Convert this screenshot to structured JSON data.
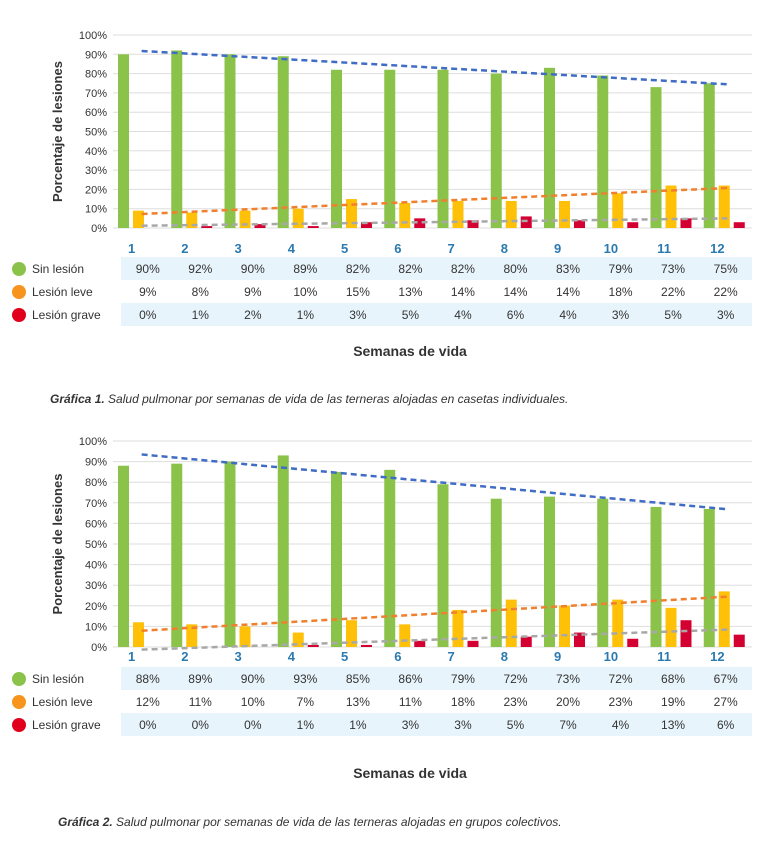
{
  "colors": {
    "sin": "#8bc34a",
    "leve": "#ffc107",
    "grave": "#d50032",
    "trend_sin": "#3f6cc4",
    "trend_leve": "#f07f2e",
    "trend_grave": "#a8a8a8",
    "legend_sin": "#8bc34a",
    "legend_leve": "#f7941d",
    "legend_grave": "#e0001b",
    "week_label": "#2a7ab0",
    "grid": "#dedede"
  },
  "chart_data": [
    {
      "type": "bar",
      "ylabel": "Porcentaje de lesiones",
      "xlabel": "Semanas de vida",
      "ylim": [
        0,
        100
      ],
      "yticks": [
        "0%",
        "10%",
        "20%",
        "30%",
        "40%",
        "50%",
        "60%",
        "70%",
        "80%",
        "90%",
        "100%"
      ],
      "categories": [
        "1",
        "2",
        "3",
        "4",
        "5",
        "6",
        "7",
        "8",
        "9",
        "10",
        "11",
        "12"
      ],
      "series": [
        {
          "name": "Sin lesión",
          "values": [
            90,
            92,
            90,
            89,
            82,
            82,
            82,
            80,
            83,
            79,
            73,
            75
          ],
          "labels": [
            "90%",
            "92%",
            "90%",
            "89%",
            "82%",
            "82%",
            "82%",
            "80%",
            "83%",
            "79%",
            "73%",
            "75%"
          ]
        },
        {
          "name": "Lesión leve",
          "values": [
            9,
            8,
            9,
            10,
            15,
            13,
            14,
            14,
            14,
            18,
            22,
            22
          ],
          "labels": [
            "9%",
            "8%",
            "9%",
            "10%",
            "15%",
            "13%",
            "14%",
            "14%",
            "14%",
            "18%",
            "22%",
            "22%"
          ]
        },
        {
          "name": "Lesión grave",
          "values": [
            0,
            1,
            2,
            1,
            3,
            5,
            4,
            6,
            4,
            3,
            5,
            3
          ],
          "labels": [
            "0%",
            "1%",
            "2%",
            "1%",
            "3%",
            "5%",
            "4%",
            "6%",
            "4%",
            "3%",
            "5%",
            "3%"
          ]
        }
      ],
      "trendlines": true,
      "grid": true,
      "caption_prefix": "Gráfica 1.",
      "caption_text": "Salud pulmonar por semanas de vida de las terneras alojadas en casetas individuales."
    },
    {
      "type": "bar",
      "ylabel": "Porcentaje de lesiones",
      "xlabel": "Semanas de vida",
      "ylim": [
        0,
        100
      ],
      "yticks": [
        "0%",
        "10%",
        "20%",
        "30%",
        "40%",
        "50%",
        "60%",
        "70%",
        "80%",
        "90%",
        "100%"
      ],
      "categories": [
        "1",
        "2",
        "3",
        "4",
        "5",
        "6",
        "7",
        "8",
        "9",
        "10",
        "11",
        "12"
      ],
      "series": [
        {
          "name": "Sin lesión",
          "values": [
            88,
            89,
            90,
            93,
            85,
            86,
            79,
            72,
            73,
            72,
            68,
            67
          ],
          "labels": [
            "88%",
            "89%",
            "90%",
            "93%",
            "85%",
            "86%",
            "79%",
            "72%",
            "73%",
            "72%",
            "68%",
            "67%"
          ]
        },
        {
          "name": "Lesión leve",
          "values": [
            12,
            11,
            10,
            7,
            13,
            11,
            18,
            23,
            20,
            23,
            19,
            27
          ],
          "labels": [
            "12%",
            "11%",
            "10%",
            "7%",
            "13%",
            "11%",
            "18%",
            "23%",
            "20%",
            "23%",
            "19%",
            "27%"
          ]
        },
        {
          "name": "Lesión grave",
          "values": [
            0,
            0,
            0,
            1,
            1,
            3,
            3,
            5,
            7,
            4,
            13,
            6
          ],
          "labels": [
            "0%",
            "0%",
            "0%",
            "1%",
            "1%",
            "3%",
            "3%",
            "5%",
            "7%",
            "4%",
            "13%",
            "6%"
          ]
        }
      ],
      "trendlines": true,
      "grid": true,
      "caption_prefix": "Gráfica 2.",
      "caption_text": "Salud pulmonar por semanas de vida de las terneras alojadas en grupos colectivos."
    }
  ]
}
